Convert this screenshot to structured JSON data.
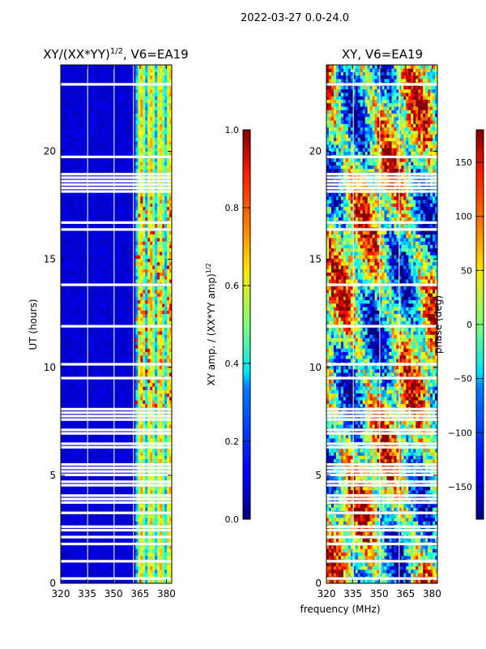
{
  "figure_title": "2022-03-27 0.0-24.0",
  "chart_data": [
    {
      "type": "heatmap",
      "title": "XY/(XX*YY)^1/2, V6=EA19",
      "title_main": "XY/(XX*YY)",
      "title_exp": "1/2",
      "title_tail": ", V6=EA19",
      "xlabel": "",
      "ylabel": "UT (hours)",
      "xlim": [
        320,
        383
      ],
      "ylim": [
        0,
        24
      ],
      "xticks": [
        320,
        335,
        350,
        365,
        380
      ],
      "yticks": [
        0,
        5,
        10,
        15,
        20
      ],
      "colorbar": {
        "label": "XY amp. / (XX*YY amp)^1/2",
        "label_main": "XY amp. / (XX*YY amp)",
        "label_exp": "1/2",
        "range": [
          0.0,
          1.0
        ],
        "ticks": [
          "0.0",
          "0.2",
          "0.4",
          "0.6",
          "0.8",
          "1.0"
        ]
      }
    },
    {
      "type": "heatmap",
      "title": "XY, V6=EA19",
      "xlabel": "frequency (MHz)",
      "ylabel": "",
      "xlim": [
        320,
        383
      ],
      "ylim": [
        0,
        24
      ],
      "xticks": [
        320,
        335,
        350,
        365,
        380
      ],
      "yticks": [
        0,
        5,
        10,
        15,
        20
      ],
      "colorbar": {
        "label": "phase (deg)",
        "range": [
          -180,
          180
        ],
        "ticks": [
          "150",
          "100",
          "50",
          "0",
          "−50",
          "−100",
          "−150"
        ]
      }
    }
  ]
}
